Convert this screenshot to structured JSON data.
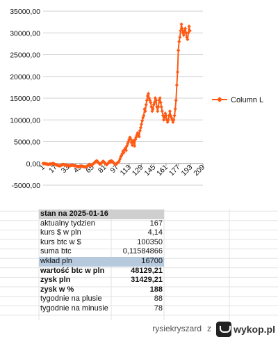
{
  "chart_data": {
    "type": "line",
    "series": [
      {
        "name": "Column L",
        "color": "#ff5a14",
        "values": [
          0,
          0,
          -50,
          -100,
          -150,
          -100,
          -200,
          -250,
          -150,
          -100,
          -200,
          -100,
          -50,
          0,
          -50,
          -150,
          -250,
          -300,
          -400,
          -450,
          -500,
          -550,
          -600,
          -450,
          -400,
          -300,
          -200,
          -250,
          -350,
          -300,
          -450,
          -400,
          -550,
          -500,
          -600,
          -550,
          -500,
          -450,
          -400,
          -450,
          -500,
          -550,
          -500,
          -600,
          -700,
          -750,
          -800,
          -750,
          -700,
          -650,
          -600,
          -650,
          -700,
          -750,
          -800,
          -850,
          -700,
          -650,
          -600,
          -400,
          -300,
          -200,
          -400,
          -500,
          -300,
          -100,
          0,
          200,
          400,
          500,
          600,
          400,
          200,
          0,
          -200,
          -100,
          100,
          300,
          500,
          400,
          200,
          0,
          -200,
          -300,
          -100,
          100,
          400,
          500,
          300,
          600,
          500,
          300,
          100,
          -100,
          -200,
          -150,
          -50,
          200,
          300,
          500,
          1000,
          1500,
          1800,
          2200,
          2800,
          2500,
          3200,
          3500,
          3000,
          4000,
          4500,
          5000,
          5500,
          6000,
          5600,
          4800,
          4200,
          5200,
          4900,
          4000,
          5500,
          6000,
          6500,
          7000,
          6800,
          6200,
          7500,
          8200,
          9000,
          9800,
          10500,
          11000,
          12500,
          12000,
          13500,
          14500,
          15500,
          16000,
          15000,
          14500,
          14000,
          13000,
          12000,
          12500,
          13500,
          14000,
          15000,
          14500,
          13000,
          12000,
          13000,
          14500,
          15000,
          14000,
          13000,
          12000,
          11000,
          10000,
          10500,
          11500,
          11000,
          10000,
          9500,
          10000,
          11000,
          12000,
          11000,
          10500,
          10000,
          9500,
          10000,
          11000,
          12500,
          14500,
          18000,
          21000,
          26000,
          28000,
          29000,
          30500,
          32000,
          31000,
          30000,
          29500,
          30500,
          31000,
          30000,
          29000,
          28500,
          30000,
          31500,
          30500
        ],
        "marker": "diamond"
      }
    ],
    "x_ticks": [
      "1",
      "17",
      "33",
      "49",
      "65",
      "81",
      "97",
      "113",
      "129",
      "145",
      "161",
      "177",
      "193",
      "209"
    ],
    "xlim": [
      1,
      209
    ],
    "y_ticks": [
      "35000,00",
      "30000,00",
      "25000,00",
      "20000,00",
      "15000,00",
      "10000,00",
      "5000,00",
      "0,00",
      "-5000,00"
    ],
    "ylim": [
      -5000,
      35000
    ],
    "legend_position": "right",
    "grid": true
  },
  "table": {
    "header": "stan na 2025-01-16",
    "rows": [
      {
        "label": "aktualny tydzien",
        "value": "167"
      },
      {
        "label": "kurs $ w pln",
        "value": "4,14"
      },
      {
        "label": "kurs btc w $",
        "value": "100350"
      },
      {
        "label": "suma btc",
        "value": "0,11584866"
      },
      {
        "label": "wkład pln",
        "value": "16700"
      },
      {
        "label": "wartość btc w pln",
        "value": "48129,21"
      },
      {
        "label": "zysk pln",
        "value": "31429,21"
      },
      {
        "label": "zysk w %",
        "value": "188"
      },
      {
        "label": "tygodnie na plusie",
        "value": "88"
      },
      {
        "label": "tygodnie na minusie",
        "value": "78"
      }
    ]
  },
  "footer": {
    "username": "rysiekryszard",
    "z": "z",
    "brand": "wykop.pl"
  },
  "colors": {
    "line": "#ff5a14",
    "header_bg": "#cfcfcf",
    "highlight_bg": "#b7c9dd"
  }
}
